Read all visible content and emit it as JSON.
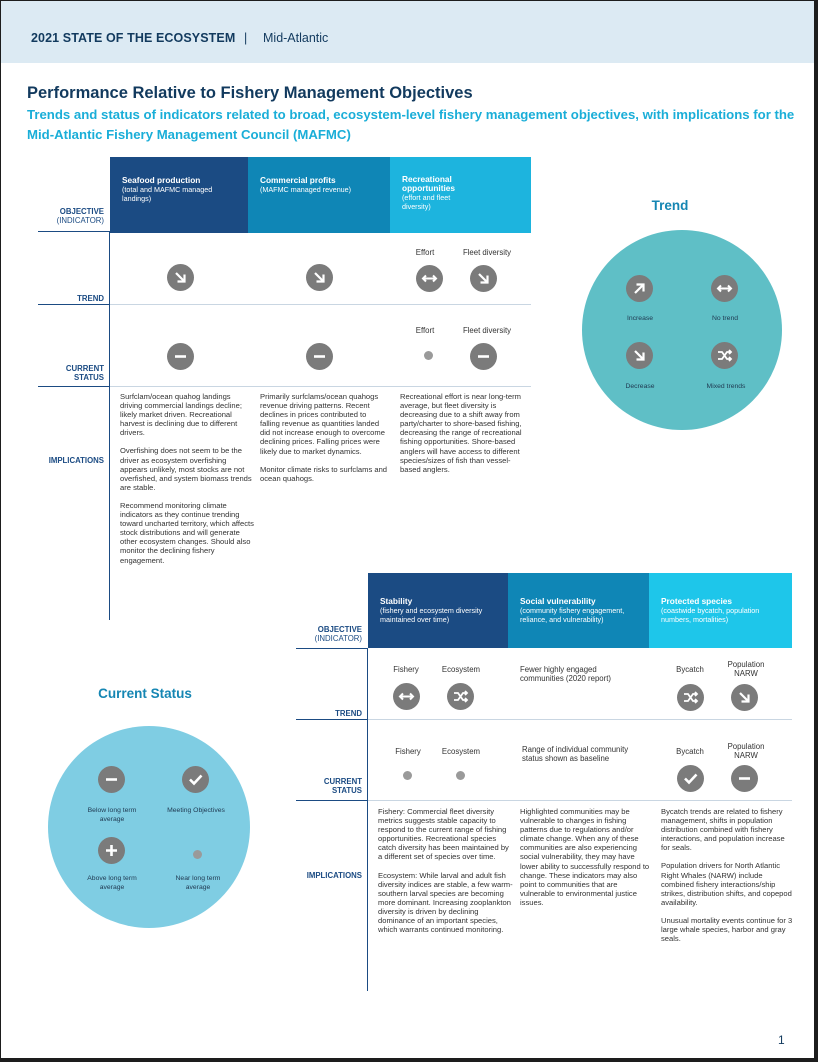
{
  "header": {
    "title": "2021 STATE OF THE ECOSYSTEM",
    "separator": "|",
    "region": "Mid-Atlantic"
  },
  "heading": "Performance Relative to Fishery Management Objectives",
  "subheading": "Trends and status of indicators related to broad, ecosystem-level fishery management objectives, with implications for the Mid-Atlantic Fishery Management Council (MAFMC)",
  "row_labels": {
    "objective": "OBJECTIVE",
    "indicator": "(INDICATOR)",
    "trend": "TREND",
    "current": "CURRENT",
    "status": "STATUS",
    "implications": "IMPLICATIONS"
  },
  "top": {
    "objectives": [
      {
        "title": "Seafood production",
        "sub": "(total and MAFMC managed landings)"
      },
      {
        "title": "Commercial profits",
        "sub": "(MAFMC managed revenue)"
      },
      {
        "title": "Recreational opportunities",
        "sub": "(effort and fleet diversity)"
      }
    ],
    "trend_labels": {
      "effort": "Effort",
      "fleet": "Fleet diversity"
    },
    "status_labels": {
      "effort": "Effort",
      "fleet": "Fleet diversity"
    },
    "icons": {
      "trend": [
        "decrease-icon",
        "decrease-icon",
        "no-trend-icon",
        "decrease-icon"
      ],
      "status": [
        "below-average-icon",
        "below-average-icon",
        "near-average-dot",
        "below-average-icon"
      ]
    },
    "implications": [
      [
        "Surfclam/ocean quahog landings driving commercial landings decline; likely market driven. Recreational harvest is declining due to different drivers.",
        "Overfishing does not seem to be the driver as ecosystem overfishing appears unlikely, most stocks are not overfished, and system biomass trends are stable.",
        "Recommend monitoring climate indicators as they continue trending toward uncharted territory, which affects stock distributions and will generate other ecosystem changes. Should also monitor the declining fishery engagement."
      ],
      [
        "Primarily surfclams/ocean quahogs revenue driving patterns. Recent declines in prices contributed to falling revenue as quantities landed did not increase enough to overcome declining prices. Falling prices were likely due to market dynamics.",
        "Monitor climate risks to surfclams and ocean quahogs."
      ],
      [
        "Recreational effort is near long-term average, but fleet diversity is decreasing due to a shift away from party/charter to shore-based fishing, decreasing the range of recreational fishing opportunities. Shore-based anglers will have access to different species/sizes of fish than vessel-based anglers."
      ]
    ]
  },
  "bottom": {
    "objectives": [
      {
        "title": "Stability",
        "sub": "(fishery and ecosystem diversity maintained over time)"
      },
      {
        "title": "Social vulnerability",
        "sub": "(community fishery engagement, reliance, and vulnerability)"
      },
      {
        "title": "Protected species",
        "sub": "(coastwide bycatch, population numbers, mortalities)"
      }
    ],
    "trend_labels": {
      "fishery": "Fishery",
      "ecosystem": "Ecosystem",
      "social": "Fewer highly engaged communities (2020 report)",
      "bycatch": "Bycatch",
      "population": "Population NARW"
    },
    "status_labels": {
      "fishery": "Fishery",
      "ecosystem": "Ecosystem",
      "social": "Range of individual community status shown as baseline",
      "bycatch": "Bycatch",
      "population": "Population NARW"
    },
    "implications": [
      [
        "Fishery: Commercial fleet diversity metrics suggests stable capacity to respond to the current range of fishing opportunities. Recreational species catch diversity has been maintained by a different set of species over time.",
        "Ecosystem: While larval and adult fish diversity indices are stable, a few warm-southern larval species are becoming more dominant. Increasing zooplankton diversity is driven by declining dominance of an important species, which warrants continued monitoring."
      ],
      [
        "Highlighted communities may be vulnerable to changes in fishing patterns due to regulations and/or climate change. When any of these communities are also experiencing social vulnerability, they may have lower ability to successfully respond to change. These indicators may also point to communities that are vulnerable to environmental justice issues."
      ],
      [
        "Bycatch trends are related to fishery management, shifts in population distribution combined with fishery interactions, and population increase for seals.",
        "Population drivers for North Atlantic Right Whales (NARW) include combined fishery interactions/ship strikes, distribution shifts, and copepod availability.",
        "Unusual mortality events continue for 3 large whale species, harbor and gray seals."
      ]
    ]
  },
  "trend_legend": {
    "title": "Trend",
    "increase": "Increase",
    "no_trend": "No trend",
    "decrease": "Decrease",
    "mixed": "Mixed trends"
  },
  "status_legend": {
    "title": "Current Status",
    "below": "Below long term average",
    "meeting": "Meeting Objectives",
    "above": "Above long term average",
    "near": "Near long term average"
  },
  "colors": {
    "navy": "#1b4b83",
    "teal": "#0f86b6",
    "cyan": "#1db4de",
    "legend_trend": "#5fbfc6",
    "legend_status": "#7fcde3",
    "icon_gray": "#7b7b7b"
  },
  "page_number": "1"
}
